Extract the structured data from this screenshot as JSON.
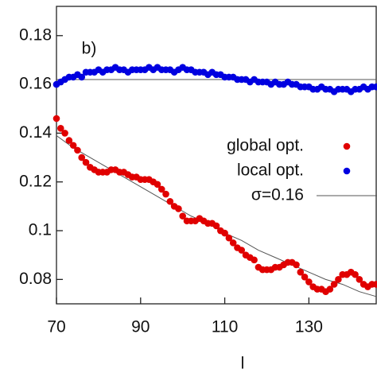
{
  "chart_data": {
    "type": "scatter",
    "annotation": "b)",
    "xlabel": "l",
    "xlim": [
      70,
      146
    ],
    "ylim": [
      0.07,
      0.192
    ],
    "xticks": [
      70,
      90,
      110,
      130
    ],
    "yticks": [
      0.08,
      0.1,
      0.12,
      0.14,
      0.16,
      0.18
    ],
    "series": [
      {
        "name": "global opt.",
        "type": "scatter",
        "color": "#e00000",
        "x": [
          70,
          71,
          72,
          73,
          74,
          75,
          76,
          77,
          78,
          79,
          80,
          81,
          82,
          83,
          84,
          85,
          86,
          87,
          88,
          89,
          90,
          91,
          92,
          93,
          94,
          95,
          96,
          97,
          98,
          99,
          100,
          101,
          102,
          103,
          104,
          105,
          106,
          107,
          108,
          109,
          110,
          111,
          112,
          113,
          114,
          115,
          116,
          117,
          118,
          119,
          120,
          121,
          122,
          123,
          124,
          125,
          126,
          127,
          128,
          129,
          130,
          131,
          132,
          133,
          134,
          135,
          136,
          137,
          138,
          139,
          140,
          141,
          142,
          143,
          144,
          145,
          146
        ],
        "values": [
          0.146,
          0.142,
          0.14,
          0.137,
          0.135,
          0.133,
          0.13,
          0.128,
          0.126,
          0.125,
          0.124,
          0.124,
          0.124,
          0.125,
          0.125,
          0.124,
          0.124,
          0.123,
          0.122,
          0.122,
          0.121,
          0.121,
          0.121,
          0.12,
          0.119,
          0.117,
          0.115,
          0.112,
          0.11,
          0.109,
          0.106,
          0.104,
          0.104,
          0.104,
          0.105,
          0.104,
          0.103,
          0.103,
          0.102,
          0.1,
          0.099,
          0.097,
          0.095,
          0.093,
          0.092,
          0.09,
          0.089,
          0.088,
          0.085,
          0.084,
          0.084,
          0.084,
          0.085,
          0.085,
          0.086,
          0.087,
          0.087,
          0.086,
          0.083,
          0.081,
          0.079,
          0.077,
          0.076,
          0.076,
          0.075,
          0.076,
          0.078,
          0.08,
          0.082,
          0.082,
          0.083,
          0.082,
          0.08,
          0.078,
          0.077,
          0.078,
          0.078
        ]
      },
      {
        "name": "local opt.",
        "type": "scatter",
        "color": "#0000e0",
        "x": [
          70,
          71,
          72,
          73,
          74,
          75,
          76,
          77,
          78,
          79,
          80,
          81,
          82,
          83,
          84,
          85,
          86,
          87,
          88,
          89,
          90,
          91,
          92,
          93,
          94,
          95,
          96,
          97,
          98,
          99,
          100,
          101,
          102,
          103,
          104,
          105,
          106,
          107,
          108,
          109,
          110,
          111,
          112,
          113,
          114,
          115,
          116,
          117,
          118,
          119,
          120,
          121,
          122,
          123,
          124,
          125,
          126,
          127,
          128,
          129,
          130,
          131,
          132,
          133,
          134,
          135,
          136,
          137,
          138,
          139,
          140,
          141,
          142,
          143,
          144,
          145,
          146
        ],
        "values": [
          0.16,
          0.161,
          0.162,
          0.163,
          0.163,
          0.164,
          0.163,
          0.165,
          0.165,
          0.165,
          0.166,
          0.165,
          0.166,
          0.166,
          0.167,
          0.166,
          0.166,
          0.165,
          0.166,
          0.166,
          0.166,
          0.166,
          0.167,
          0.166,
          0.167,
          0.166,
          0.166,
          0.166,
          0.165,
          0.166,
          0.167,
          0.166,
          0.166,
          0.165,
          0.165,
          0.165,
          0.164,
          0.165,
          0.164,
          0.164,
          0.163,
          0.163,
          0.163,
          0.162,
          0.162,
          0.162,
          0.161,
          0.162,
          0.161,
          0.161,
          0.161,
          0.16,
          0.161,
          0.16,
          0.16,
          0.161,
          0.16,
          0.16,
          0.159,
          0.159,
          0.159,
          0.158,
          0.158,
          0.159,
          0.158,
          0.158,
          0.157,
          0.158,
          0.158,
          0.158,
          0.157,
          0.158,
          0.158,
          0.159,
          0.158,
          0.159,
          0.159
        ]
      },
      {
        "name": "σ=0.16",
        "type": "line",
        "color": "#555555",
        "x": [
          70,
          74,
          78,
          82,
          86,
          90,
          94,
          98,
          102,
          106,
          110,
          114,
          118,
          122,
          126,
          130,
          134,
          138,
          142,
          146
        ],
        "values": [
          0.139,
          0.134,
          0.13,
          0.126,
          0.122,
          0.118,
          0.114,
          0.11,
          0.106,
          0.103,
          0.099,
          0.096,
          0.092,
          0.089,
          0.086,
          0.083,
          0.08,
          0.078,
          0.075,
          0.073
        ]
      },
      {
        "type": "line",
        "color": "#555555",
        "x": [
          70,
          146
        ],
        "values": [
          0.162,
          0.162
        ]
      }
    ]
  }
}
